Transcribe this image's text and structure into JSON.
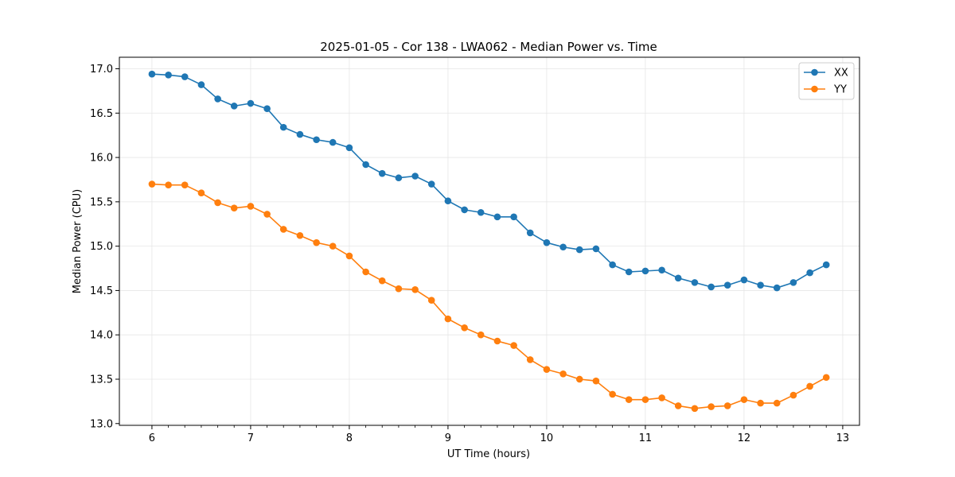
{
  "chart_data": {
    "type": "line",
    "title": "2025-01-05 - Cor 138 - LWA062 - Median Power vs. Time",
    "xlabel": "UT Time (hours)",
    "ylabel": "Median Power (CPU)",
    "xlim": [
      5.67,
      13.17
    ],
    "ylim": [
      12.98,
      17.13
    ],
    "xticks": [
      6,
      7,
      8,
      9,
      10,
      11,
      12,
      13
    ],
    "xtick_labels": [
      "6",
      "7",
      "8",
      "9",
      "10",
      "11",
      "12",
      "13"
    ],
    "yticks": [
      13.0,
      13.5,
      14.0,
      14.5,
      15.0,
      15.5,
      16.0,
      16.5,
      17.0
    ],
    "ytick_labels": [
      "13.0",
      "13.5",
      "14.0",
      "14.5",
      "15.0",
      "15.5",
      "16.0",
      "16.5",
      "17.0"
    ],
    "grid": true,
    "legend_position": "top-right",
    "x": [
      6.0,
      6.167,
      6.333,
      6.5,
      6.667,
      6.833,
      7.0,
      7.167,
      7.333,
      7.5,
      7.667,
      7.833,
      8.0,
      8.167,
      8.333,
      8.5,
      8.667,
      8.833,
      9.0,
      9.167,
      9.333,
      9.5,
      9.667,
      9.833,
      10.0,
      10.167,
      10.333,
      10.5,
      10.667,
      10.833,
      11.0,
      11.167,
      11.333,
      11.5,
      11.667,
      11.833,
      12.0,
      12.167,
      12.333,
      12.5,
      12.667,
      12.833
    ],
    "series": [
      {
        "name": "XX",
        "color": "#1f77b4",
        "values": [
          16.94,
          16.93,
          16.91,
          16.82,
          16.66,
          16.58,
          16.61,
          16.55,
          16.34,
          16.26,
          16.2,
          16.17,
          16.11,
          15.92,
          15.82,
          15.77,
          15.79,
          15.7,
          15.51,
          15.41,
          15.38,
          15.33,
          15.33,
          15.15,
          15.04,
          14.99,
          14.96,
          14.97,
          14.79,
          14.71,
          14.72,
          14.73,
          14.64,
          14.59,
          14.54,
          14.56,
          14.62,
          14.56,
          14.53,
          14.59,
          14.7,
          14.79
        ]
      },
      {
        "name": "YY",
        "color": "#ff7f0e",
        "values": [
          15.7,
          15.69,
          15.69,
          15.6,
          15.49,
          15.43,
          15.45,
          15.36,
          15.19,
          15.12,
          15.04,
          15.0,
          14.89,
          14.71,
          14.61,
          14.52,
          14.51,
          14.39,
          14.18,
          14.08,
          14.0,
          13.93,
          13.88,
          13.72,
          13.61,
          13.56,
          13.5,
          13.48,
          13.33,
          13.27,
          13.27,
          13.29,
          13.2,
          13.17,
          13.19,
          13.2,
          13.27,
          13.23,
          13.23,
          13.32,
          13.42,
          13.52
        ]
      }
    ]
  }
}
